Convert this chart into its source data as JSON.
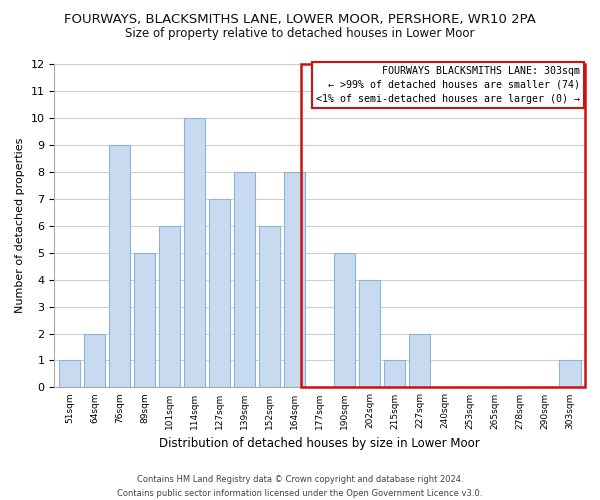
{
  "title": "FOURWAYS, BLACKSMITHS LANE, LOWER MOOR, PERSHORE, WR10 2PA",
  "subtitle": "Size of property relative to detached houses in Lower Moor",
  "xlabel": "Distribution of detached houses by size in Lower Moor",
  "ylabel": "Number of detached properties",
  "bar_labels": [
    "51sqm",
    "64sqm",
    "76sqm",
    "89sqm",
    "101sqm",
    "114sqm",
    "127sqm",
    "139sqm",
    "152sqm",
    "164sqm",
    "177sqm",
    "190sqm",
    "202sqm",
    "215sqm",
    "227sqm",
    "240sqm",
    "253sqm",
    "265sqm",
    "278sqm",
    "290sqm",
    "303sqm"
  ],
  "bar_values": [
    1,
    2,
    9,
    5,
    6,
    10,
    7,
    8,
    6,
    8,
    0,
    5,
    4,
    1,
    2,
    0,
    0,
    0,
    0,
    0,
    1
  ],
  "bar_color": "#c8daf0",
  "bar_edge_color": "#8ab4d8",
  "highlight_index": 20,
  "highlight_edge_color": "#cc1111",
  "ylim": [
    0,
    12
  ],
  "yticks": [
    0,
    1,
    2,
    3,
    4,
    5,
    6,
    7,
    8,
    9,
    10,
    11,
    12
  ],
  "annotation_title": "FOURWAYS BLACKSMITHS LANE: 303sqm",
  "annotation_line1": "← >99% of detached houses are smaller (74)",
  "annotation_line2": "<1% of semi-detached houses are larger (0) →",
  "annotation_box_color": "#ffffff",
  "annotation_box_edge": "#cc1111",
  "footer1": "Contains HM Land Registry data © Crown copyright and database right 2024.",
  "footer2": "Contains public sector information licensed under the Open Government Licence v3.0.",
  "grid_color": "#cccccc",
  "background_color": "#ffffff",
  "title_fontsize": 9.5,
  "subtitle_fontsize": 8.5
}
